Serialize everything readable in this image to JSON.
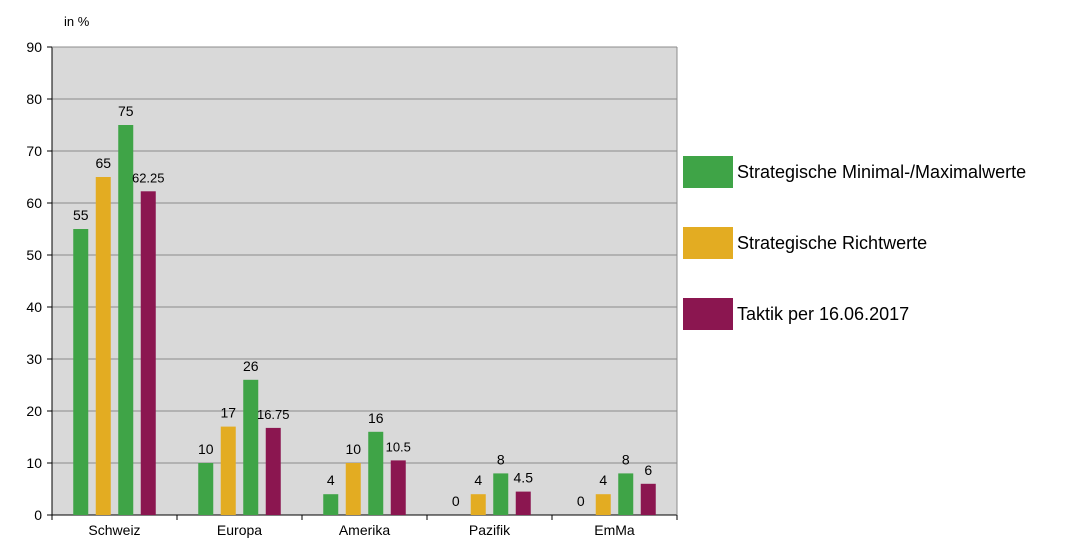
{
  "chart_data": {
    "type": "bar",
    "unit_label": "in %",
    "categories": [
      "Schweiz",
      "Europa",
      "Amerika",
      "Pazifik",
      "EmMa"
    ],
    "series": [
      {
        "name": "Strategische Minimal-/Maximalwerte",
        "color": "#3fa447",
        "role": "min",
        "values": [
          55,
          10,
          4,
          0,
          0
        ],
        "labels": [
          "55",
          "10",
          "4",
          "0",
          "0"
        ]
      },
      {
        "name": "Strategische Richtwerte",
        "color": "#e3ac22",
        "values": [
          65,
          17,
          10,
          4,
          4
        ],
        "labels": [
          "65",
          "17",
          "10",
          "4",
          "4"
        ]
      },
      {
        "name": "Strategische Minimal-/Maximalwerte",
        "color": "#3fa447",
        "role": "max",
        "values": [
          75,
          26,
          16,
          8,
          8
        ],
        "labels": [
          "75",
          "26",
          "16",
          "8",
          "8"
        ]
      },
      {
        "name": "Taktik per 16.06.2017",
        "color": "#8b1650",
        "values": [
          62.25,
          16.75,
          10.5,
          4.5,
          6
        ],
        "labels": [
          "62.25",
          "16.75",
          "10.5",
          "4.5",
          "6"
        ]
      }
    ],
    "legend": [
      {
        "label": "Strategische Minimal-/Maximalwerte",
        "color": "#3fa447"
      },
      {
        "label": "Strategische Richtwerte",
        "color": "#e3ac22"
      },
      {
        "label": "Taktik per 16.06.2017",
        "color": "#8b1650"
      }
    ],
    "yticks": [
      "0",
      "10",
      "20",
      "30",
      "40",
      "50",
      "60",
      "70",
      "80",
      "90"
    ],
    "ylim": [
      0,
      90
    ],
    "grid": true,
    "plot_background": "#d9d9d9",
    "legend_position": "right"
  }
}
